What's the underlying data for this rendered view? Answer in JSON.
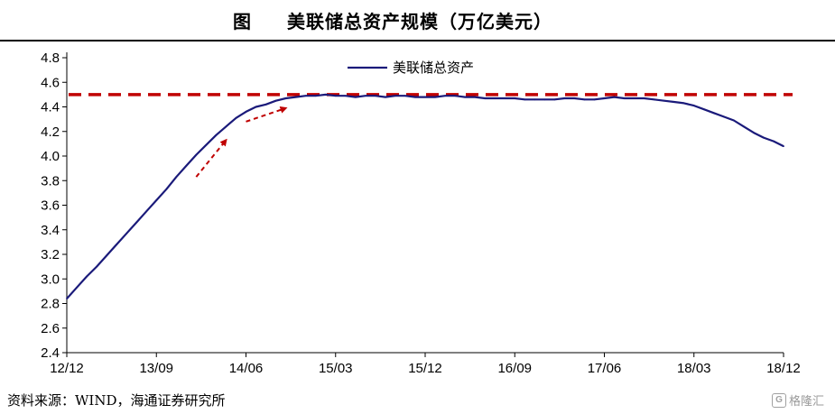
{
  "header": {
    "figure_label": "图",
    "title": "美联储总资产规模（万亿美元）"
  },
  "source": "资料来源：WIND，海通证券研究所",
  "watermark": {
    "logo": "G",
    "text": "格隆汇"
  },
  "chart_data": {
    "type": "line",
    "title": "美联储总资产规模（万亿美元）",
    "xlabel": "",
    "ylabel": "",
    "ylim": [
      2.4,
      4.8
    ],
    "yticks": [
      2.4,
      2.6,
      2.8,
      3.0,
      3.2,
      3.4,
      3.6,
      3.8,
      4.0,
      4.2,
      4.4,
      4.6,
      4.8
    ],
    "ytick_labels": [
      "2.4",
      "2.6",
      "2.8",
      "3.0",
      "3.2",
      "3.4",
      "3.6",
      "3.8",
      "4.0",
      "4.2",
      "4.4",
      "4.6",
      "4.8"
    ],
    "xlim": [
      0,
      72
    ],
    "xticks": [
      0,
      9,
      18,
      27,
      36,
      45,
      54,
      63,
      72
    ],
    "xtick_labels": [
      "12/12",
      "13/09",
      "14/06",
      "15/03",
      "15/12",
      "16/09",
      "17/06",
      "18/03",
      "18/12"
    ],
    "legend": {
      "position": "top-center",
      "entries": [
        "美联储总资产"
      ]
    },
    "series": [
      {
        "name": "美联储总资产",
        "color": "#1a1a7a",
        "x": [
          0,
          1,
          2,
          3,
          4,
          5,
          6,
          7,
          8,
          9,
          10,
          11,
          12,
          13,
          14,
          15,
          16,
          17,
          18,
          19,
          20,
          21,
          22,
          23,
          24,
          25,
          26,
          27,
          28,
          29,
          30,
          31,
          32,
          33,
          34,
          35,
          36,
          37,
          38,
          39,
          40,
          41,
          42,
          43,
          44,
          45,
          46,
          47,
          48,
          49,
          50,
          51,
          52,
          53,
          54,
          55,
          56,
          57,
          58,
          59,
          60,
          61,
          62,
          63,
          64,
          65,
          66,
          67,
          68,
          69,
          70,
          71,
          72
        ],
        "values": [
          2.84,
          2.93,
          3.02,
          3.1,
          3.19,
          3.28,
          3.37,
          3.46,
          3.55,
          3.64,
          3.73,
          3.83,
          3.92,
          4.01,
          4.09,
          4.17,
          4.24,
          4.31,
          4.36,
          4.4,
          4.42,
          4.45,
          4.47,
          4.48,
          4.49,
          4.49,
          4.5,
          4.49,
          4.49,
          4.48,
          4.49,
          4.49,
          4.48,
          4.49,
          4.49,
          4.48,
          4.48,
          4.48,
          4.49,
          4.49,
          4.48,
          4.48,
          4.47,
          4.47,
          4.47,
          4.47,
          4.46,
          4.46,
          4.46,
          4.46,
          4.47,
          4.47,
          4.46,
          4.46,
          4.47,
          4.48,
          4.47,
          4.47,
          4.47,
          4.46,
          4.45,
          4.44,
          4.43,
          4.41,
          4.38,
          4.35,
          4.32,
          4.29,
          4.24,
          4.19,
          4.15,
          4.12,
          4.08
        ]
      }
    ],
    "reference_line": {
      "y": 4.5,
      "style": "dashed",
      "color": "#c00000"
    },
    "annotations": [
      {
        "type": "arrow",
        "from": [
          13,
          3.83
        ],
        "to": [
          16,
          4.13
        ],
        "style": "dashed",
        "color": "#c00000"
      },
      {
        "type": "arrow",
        "from": [
          18,
          4.28
        ],
        "to": [
          22,
          4.39
        ],
        "style": "dashed",
        "color": "#c00000"
      }
    ],
    "grid": false
  }
}
